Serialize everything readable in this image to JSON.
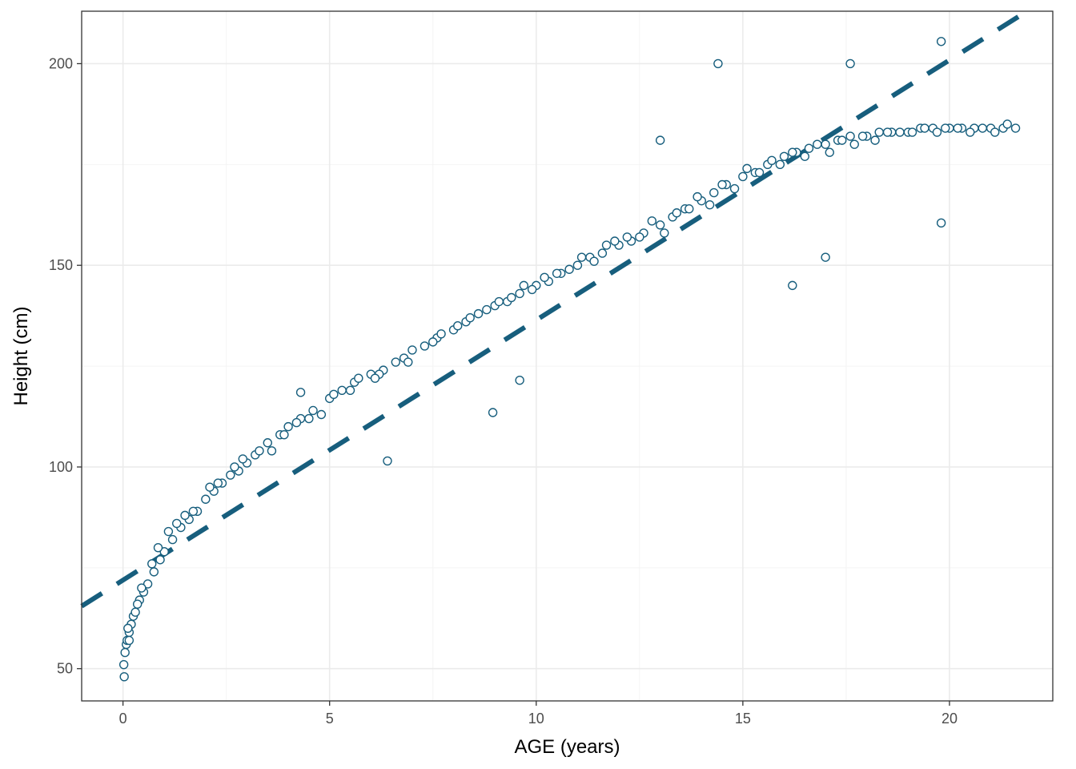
{
  "chart_data": {
    "type": "scatter",
    "title": "",
    "xlabel": "AGE (years)",
    "ylabel": "Height (cm)",
    "xlim": [
      -1.0,
      22.5
    ],
    "ylim": [
      42,
      213
    ],
    "xticks": [
      0,
      5,
      10,
      15,
      20
    ],
    "xtick_labels": [
      "0",
      "5",
      "10",
      "15",
      "20"
    ],
    "yticks": [
      50,
      100,
      150,
      200
    ],
    "ytick_labels": [
      "50",
      "100",
      "150",
      "200"
    ],
    "x_minor_grid": [
      2.5,
      7.5,
      12.5,
      17.5
    ],
    "y_minor_grid": [
      75,
      125,
      175
    ],
    "grid": true,
    "legend": "none",
    "colors": {
      "points": "#175e7d",
      "trend": "#175e7d",
      "grid_major": "#ebebeb",
      "grid_minor": "#f4f4f4",
      "panel_border": "#333333"
    },
    "series": [
      {
        "type": "scatter",
        "x": [
          0.02,
          0.05,
          0.08,
          0.1,
          0.15,
          0.2,
          0.25,
          0.3,
          0.4,
          0.5,
          0.6,
          0.75,
          0.9,
          1.0,
          1.2,
          1.4,
          1.6,
          1.8,
          2.0,
          2.2,
          2.4,
          2.6,
          2.8,
          3.0,
          3.2,
          3.5,
          3.8,
          4.0,
          4.3,
          4.6,
          5.0,
          5.3,
          5.6,
          6.0,
          6.3,
          6.6,
          7.0,
          7.3,
          7.6,
          8.0,
          8.3,
          8.6,
          9.0,
          9.3,
          9.6,
          10.0,
          10.3,
          10.6,
          11.0,
          11.3,
          11.6,
          12.0,
          12.3,
          12.6,
          13.0,
          13.3,
          13.6,
          14.0,
          14.3,
          14.6,
          15.0,
          15.3,
          15.6,
          16.0,
          16.3,
          16.6,
          17.0,
          17.3,
          17.6,
          18.0,
          18.3,
          18.6,
          19.0,
          19.3,
          19.6,
          20.0,
          20.3,
          20.6,
          21.0,
          21.3,
          21.6,
          0.03,
          0.12,
          0.35,
          0.7,
          1.1,
          1.5,
          2.1,
          2.7,
          3.3,
          3.9,
          4.5,
          5.1,
          5.7,
          6.2,
          6.8,
          7.5,
          8.1,
          8.8,
          9.4,
          9.9,
          10.5,
          11.1,
          11.7,
          12.2,
          12.8,
          13.4,
          13.9,
          14.5,
          15.1,
          15.7,
          16.2,
          16.8,
          17.4,
          17.9,
          18.5,
          19.1,
          19.7,
          20.2,
          20.8,
          21.4,
          4.3,
          6.4,
          8.95,
          9.6,
          13.0,
          14.4,
          16.2,
          17.0,
          17.6,
          19.8,
          19.8,
          0.15,
          0.45,
          0.85,
          1.3,
          1.7,
          2.3,
          2.9,
          3.6,
          4.2,
          4.8,
          5.5,
          6.1,
          6.9,
          7.7,
          8.4,
          9.1,
          9.7,
          10.2,
          10.8,
          11.4,
          11.9,
          12.5,
          13.1,
          13.7,
          14.2,
          14.8,
          15.4,
          15.9,
          16.5,
          17.1,
          17.7,
          18.2,
          18.8,
          19.4,
          19.9,
          20.5,
          21.1
        ],
        "y": [
          51,
          54,
          56,
          57,
          59,
          61,
          63,
          64,
          67,
          69,
          71,
          74,
          77,
          79,
          82,
          85,
          87,
          89,
          92,
          94,
          96,
          98,
          99,
          101,
          103,
          106,
          108,
          110,
          112,
          114,
          117,
          119,
          121,
          123,
          124,
          126,
          129,
          130,
          132,
          134,
          136,
          138,
          140,
          141,
          143,
          145,
          146,
          148,
          150,
          152,
          153,
          155,
          156,
          158,
          160,
          162,
          164,
          166,
          168,
          170,
          172,
          173,
          175,
          177,
          178,
          179,
          180,
          181,
          182,
          182,
          183,
          183,
          183,
          184,
          184,
          184,
          184,
          184,
          184,
          184,
          184,
          48,
          60,
          66,
          76,
          84,
          88,
          95,
          100,
          104,
          108,
          112,
          118,
          122,
          123,
          127,
          131,
          135,
          139,
          142,
          144,
          148,
          152,
          155,
          157,
          161,
          163,
          167,
          170,
          174,
          176,
          178,
          180,
          181,
          182,
          183,
          183,
          183,
          184,
          184,
          185,
          118.5,
          101.5,
          113.5,
          121.5,
          181,
          200,
          145,
          152,
          200,
          160.5,
          205.5,
          57,
          70,
          80,
          86,
          89,
          96,
          102,
          104,
          111,
          113,
          119,
          122,
          126,
          133,
          137,
          141,
          145,
          147,
          149,
          151,
          156,
          157,
          158,
          164,
          165,
          169,
          173,
          175,
          177,
          178,
          180,
          181,
          183,
          184,
          184,
          183,
          183
        ]
      },
      {
        "type": "line",
        "name": "",
        "style": "dashed",
        "x": [
          -1.0,
          21.8
        ],
        "y": [
          65.5,
          212.5
        ]
      }
    ]
  }
}
